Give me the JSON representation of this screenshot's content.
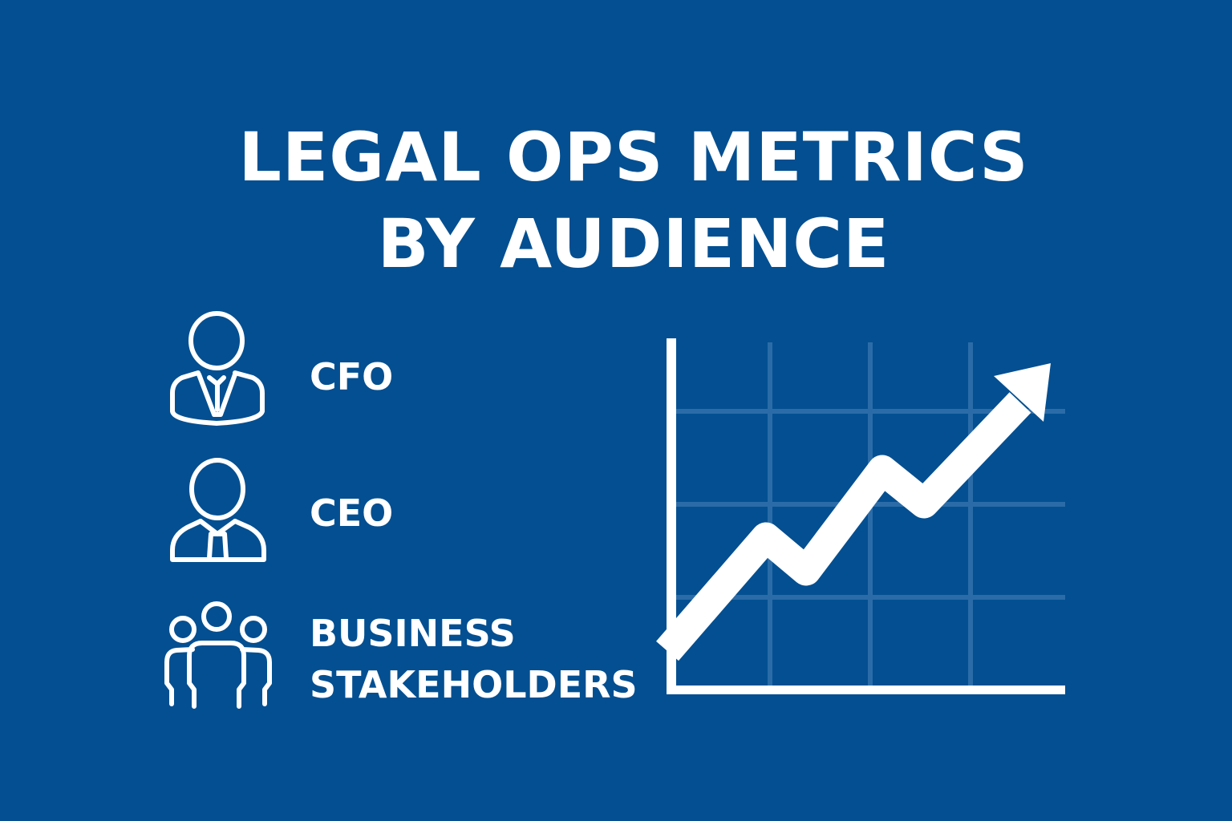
{
  "title": {
    "line1": "LEGAL OPS METRICS",
    "line2": "BY AUDIENCE"
  },
  "audiences": [
    {
      "label": "CFO",
      "icon": "person-suit-tie-icon"
    },
    {
      "label": "CEO",
      "icon": "person-tie-icon"
    },
    {
      "label_line1": "BUSINESS",
      "label_line2": "STAKEHOLDERS",
      "icon": "group-icon"
    }
  ],
  "graphic": {
    "icon": "rising-trend-arrow-chart-icon"
  },
  "colors": {
    "background": "#034f91",
    "foreground": "#ffffff",
    "grid": "#2b6ca8"
  }
}
